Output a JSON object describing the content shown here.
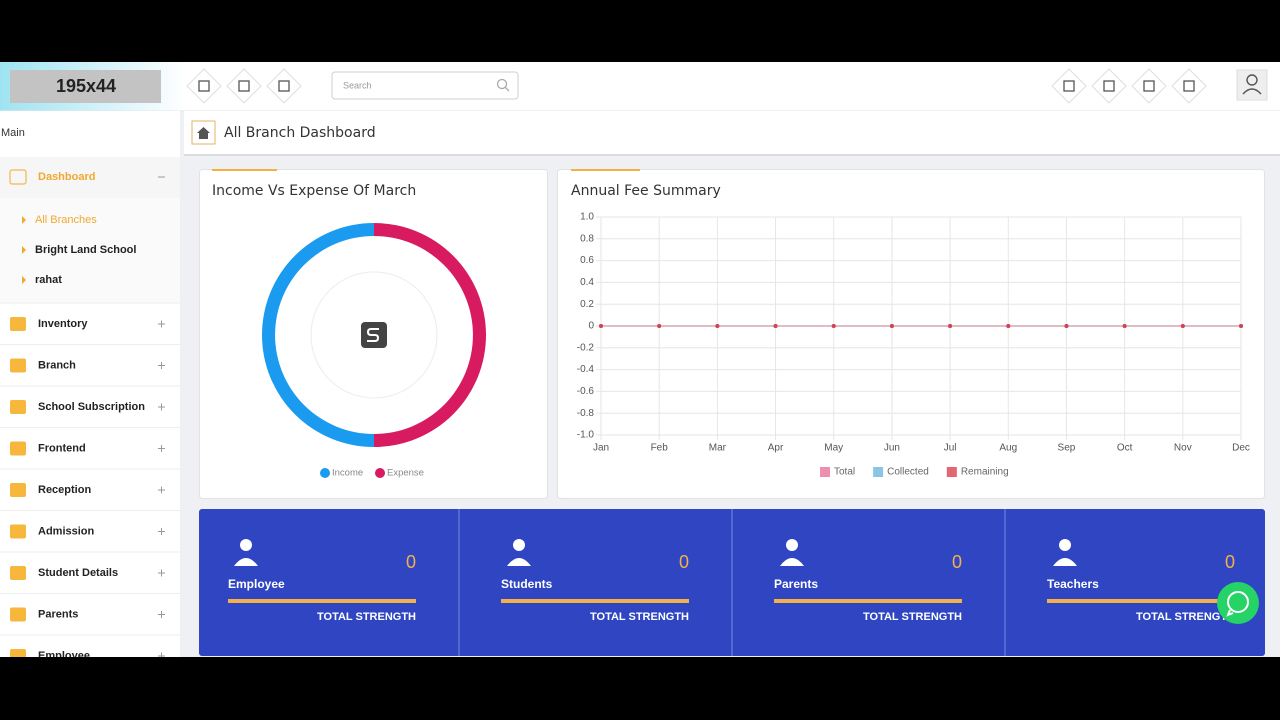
{
  "header": {
    "logo": "195x44",
    "search_placeholder": "Search"
  },
  "page_title": "All Branch Dashboard",
  "sidebar": {
    "section": "Main",
    "items": [
      {
        "label": "Dashboard",
        "children": [
          "All Branches",
          "Bright Land School",
          "rahat"
        ]
      },
      {
        "label": "Inventory"
      },
      {
        "label": "Branch"
      },
      {
        "label": "School Subscription"
      },
      {
        "label": "Frontend"
      },
      {
        "label": "Reception"
      },
      {
        "label": "Admission"
      },
      {
        "label": "Student Details"
      },
      {
        "label": "Parents"
      },
      {
        "label": "Employee"
      }
    ]
  },
  "chart_data": [
    {
      "type": "doughnut",
      "title": "Income Vs Expense Of March",
      "categories": [
        "Income",
        "Expense"
      ],
      "values": [
        50,
        50
      ],
      "colors": [
        "#1a9bef",
        "#d81b60"
      ]
    },
    {
      "type": "line",
      "title": "Annual Fee Summary",
      "categories": [
        "Jan",
        "Feb",
        "Mar",
        "Apr",
        "May",
        "Jun",
        "Jul",
        "Aug",
        "Sep",
        "Oct",
        "Nov",
        "Dec"
      ],
      "series": [
        {
          "name": "Total",
          "color": "#e8739c",
          "values": [
            0,
            0,
            0,
            0,
            0,
            0,
            0,
            0,
            0,
            0,
            0,
            0
          ]
        },
        {
          "name": "Collected",
          "color": "#6db7dc",
          "values": [
            0,
            0,
            0,
            0,
            0,
            0,
            0,
            0,
            0,
            0,
            0,
            0
          ]
        },
        {
          "name": "Remaining",
          "color": "#d9414f",
          "values": [
            0,
            0,
            0,
            0,
            0,
            0,
            0,
            0,
            0,
            0,
            0,
            0
          ]
        }
      ],
      "ylim": [
        -1,
        1
      ],
      "yticks": [
        {
          "value": 1,
          "label": "1.0"
        },
        0.8,
        0.6,
        0.4,
        0.2,
        0,
        -0.2,
        -0.4,
        -0.6,
        -0.8,
        {
          "value": -1,
          "label": "-1.0"
        }
      ],
      "grid": true
    }
  ],
  "stats": [
    {
      "label": "Employee",
      "value": 0,
      "caption": "TOTAL STRENGTH"
    },
    {
      "label": "Students",
      "value": 0,
      "caption": "TOTAL STRENGTH"
    },
    {
      "label": "Parents",
      "value": 0,
      "caption": "TOTAL STRENGTH"
    },
    {
      "label": "Teachers",
      "value": 0,
      "caption": "TOTAL STRENGTH"
    }
  ]
}
